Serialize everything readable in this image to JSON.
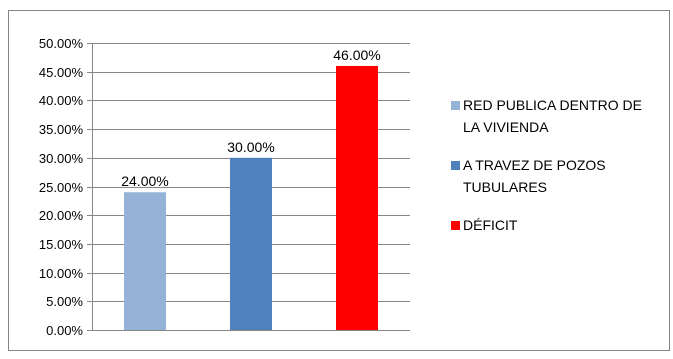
{
  "chart_data": {
    "type": "bar",
    "categories": [
      "RED PUBLICA DENTRO DE LA VIVIENDA",
      "A TRAVEZ DE POZOS TUBULARES",
      "DÉFICIT"
    ],
    "values": [
      24.0,
      30.0,
      46.0
    ],
    "data_labels": [
      "24.00%",
      "30.00%",
      "46.00%"
    ],
    "ylim": [
      0,
      50
    ],
    "yticks": [
      "0.00%",
      "5.00%",
      "10.00%",
      "15.00%",
      "20.00%",
      "25.00%",
      "30.00%",
      "35.00%",
      "40.00%",
      "45.00%",
      "50.00%"
    ],
    "colors": [
      "#95b3d7",
      "#4f81bd",
      "#ff0000"
    ],
    "grid": true,
    "legend_position": "right",
    "legend": [
      {
        "line1": "RED PUBLICA DENTRO DE",
        "line2": "LA VIVIENDA"
      },
      {
        "line1": "A TRAVEZ DE POZOS",
        "line2": "TUBULARES"
      },
      {
        "line1": "DÉFICIT",
        "line2": ""
      }
    ]
  }
}
